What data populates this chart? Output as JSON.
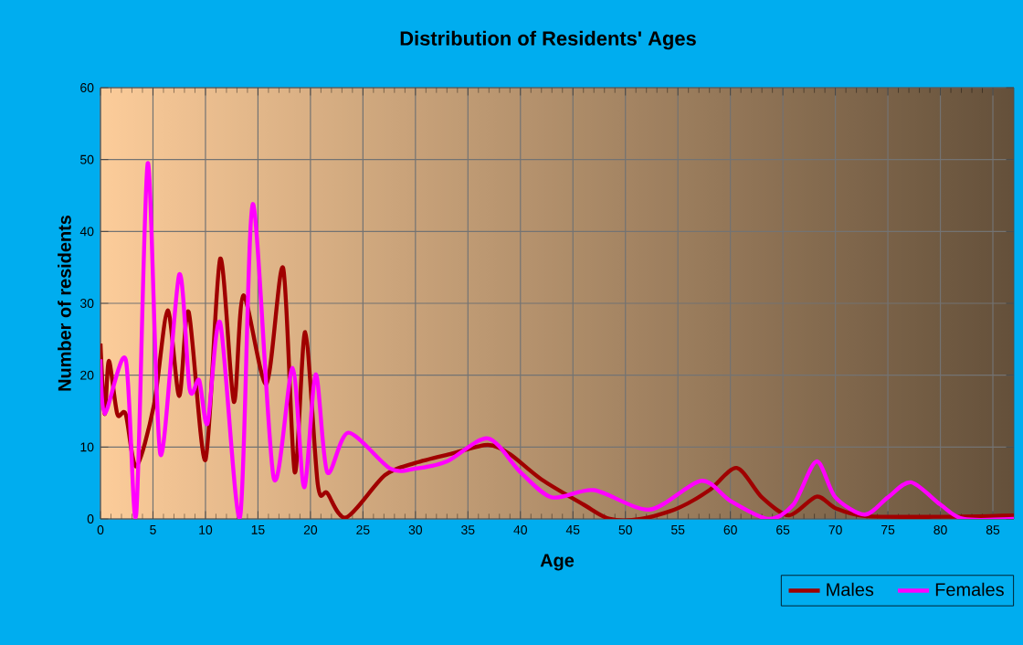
{
  "chart_data": {
    "type": "line",
    "title": "Distribution of Residents' Ages",
    "xlabel": "Age",
    "ylabel": "Number of residents",
    "xlim": [
      0,
      87
    ],
    "ylim": [
      0,
      60
    ],
    "xticks": [
      0,
      5,
      10,
      15,
      20,
      25,
      30,
      35,
      40,
      45,
      50,
      55,
      60,
      65,
      70,
      75,
      80,
      85
    ],
    "yticks": [
      0,
      10,
      20,
      30,
      40,
      50,
      60
    ],
    "grid": true,
    "legend": "bottom right",
    "marker": "none",
    "line_style": "solid",
    "series": [
      {
        "name": "Males",
        "color": "#a00000",
        "x": [
          0,
          0.4,
          0.8,
          1.6,
          2.4,
          3.4,
          5.1,
          6.4,
          7.5,
          8.4,
          10,
          11.4,
          12.7,
          13.6,
          15.8,
          17.4,
          18.5,
          19.5,
          20.7,
          21.6,
          23.4,
          27.1,
          30,
          33.5,
          36.9,
          39,
          42,
          46,
          48.5,
          51.5,
          55,
          58,
          60.6,
          63,
          65.6,
          68.2,
          70,
          72.8,
          80,
          87
        ],
        "values": [
          24.4,
          14.6,
          22,
          14.6,
          14.6,
          7.3,
          15.9,
          29,
          17.1,
          28.8,
          8.2,
          36.2,
          16.3,
          31.1,
          18.8,
          34.9,
          6.5,
          26,
          4.8,
          3.6,
          0.2,
          6.1,
          7.8,
          9.1,
          10.3,
          9,
          5.5,
          2,
          0,
          0,
          1.5,
          4,
          7.1,
          3,
          0.5,
          3.1,
          1.5,
          0.4,
          0.3,
          0.5
        ]
      },
      {
        "name": "Females",
        "color": "#ff00ff",
        "x": [
          0,
          0.4,
          2.4,
          3.4,
          4.5,
          5.7,
          7.5,
          8.5,
          9.4,
          10.2,
          11.4,
          13.3,
          14.5,
          16.5,
          18.3,
          19.4,
          20.5,
          21.6,
          23.6,
          27.6,
          30,
          33,
          36.9,
          40,
          43,
          47,
          52.3,
          57.2,
          60,
          63.6,
          66,
          68.2,
          70,
          72.8,
          75,
          77.2,
          80,
          82.2,
          87
        ],
        "values": [
          22.2,
          14.6,
          22.2,
          0.6,
          49.5,
          9,
          34,
          18,
          19.3,
          13.3,
          27.3,
          0.3,
          43.8,
          5.7,
          21,
          4.4,
          20.1,
          6.5,
          12,
          7,
          7,
          8,
          11.2,
          6.5,
          3,
          4,
          1.3,
          5.3,
          2.5,
          0,
          2,
          8,
          3,
          0.6,
          3,
          5.1,
          2,
          0,
          0
        ]
      }
    ]
  }
}
